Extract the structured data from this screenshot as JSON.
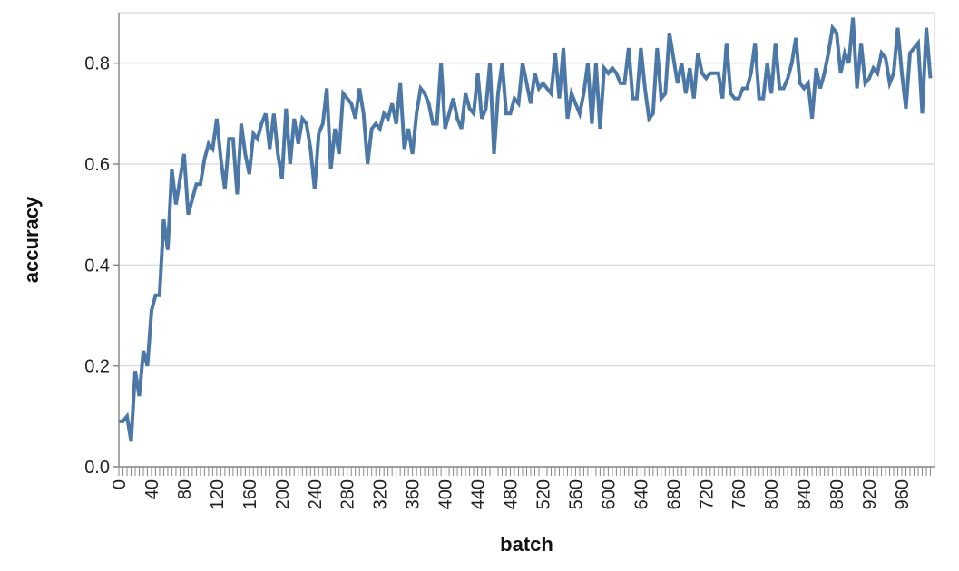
{
  "chart_data": {
    "type": "line",
    "title": "",
    "xlabel": "batch",
    "ylabel": "accuracy",
    "xlim": [
      0,
      1000
    ],
    "ylim": [
      0,
      0.9
    ],
    "x_ticks": [
      "0",
      "40",
      "80",
      "120",
      "160",
      "200",
      "240",
      "280",
      "320",
      "360",
      "400",
      "440",
      "480",
      "520",
      "560",
      "600",
      "640",
      "680",
      "720",
      "760",
      "800",
      "840",
      "880",
      "920",
      "960"
    ],
    "y_ticks": [
      "0.0",
      "0.2",
      "0.4",
      "0.6",
      "0.8"
    ],
    "grid": true,
    "line_color": "#4c78a8",
    "series": [
      {
        "x": [
          0,
          5,
          10,
          15,
          20,
          25,
          30,
          35,
          40,
          45,
          50,
          55,
          60,
          65,
          70,
          75,
          80,
          85,
          90,
          95,
          100,
          105,
          110,
          115,
          120,
          125,
          130,
          135,
          140,
          145,
          150,
          155,
          160,
          165,
          170,
          175,
          180,
          185,
          190,
          195,
          200,
          205,
          210,
          215,
          220,
          225,
          230,
          235,
          240,
          245,
          250,
          255,
          260,
          265,
          270,
          275,
          280,
          285,
          290,
          295,
          300,
          305,
          310,
          315,
          320,
          325,
          330,
          335,
          340,
          345,
          350,
          355,
          360,
          365,
          370,
          375,
          380,
          385,
          390,
          395,
          400,
          405,
          410,
          415,
          420,
          425,
          430,
          435,
          440,
          445,
          450,
          455,
          460,
          465,
          470,
          475,
          480,
          485,
          490,
          495,
          500,
          505,
          510,
          515,
          520,
          525,
          530,
          535,
          540,
          545,
          550,
          555,
          560,
          565,
          570,
          575,
          580,
          585,
          590,
          595,
          600,
          605,
          610,
          615,
          620,
          625,
          630,
          635,
          640,
          645,
          650,
          655,
          660,
          665,
          670,
          675,
          680,
          685,
          690,
          695,
          700,
          705,
          710,
          715,
          720,
          725,
          730,
          735,
          740,
          745,
          750,
          755,
          760,
          765,
          770,
          775,
          780,
          785,
          790,
          795,
          800,
          805,
          810,
          815,
          820,
          825,
          830,
          835,
          840,
          845,
          850,
          855,
          860,
          865,
          870,
          875,
          880,
          885,
          890,
          895,
          900,
          905,
          910,
          915,
          920,
          925,
          930,
          935,
          940,
          945,
          950,
          955,
          960,
          965,
          970,
          975,
          980,
          985,
          990,
          995
        ],
        "values": [
          0.09,
          0.09,
          0.1,
          0.05,
          0.19,
          0.14,
          0.23,
          0.2,
          0.31,
          0.34,
          0.34,
          0.49,
          0.43,
          0.59,
          0.52,
          0.57,
          0.62,
          0.5,
          0.53,
          0.56,
          0.56,
          0.61,
          0.64,
          0.63,
          0.69,
          0.61,
          0.55,
          0.65,
          0.65,
          0.54,
          0.68,
          0.62,
          0.58,
          0.66,
          0.65,
          0.68,
          0.7,
          0.63,
          0.7,
          0.62,
          0.57,
          0.71,
          0.6,
          0.69,
          0.64,
          0.69,
          0.68,
          0.63,
          0.55,
          0.66,
          0.68,
          0.75,
          0.59,
          0.67,
          0.62,
          0.74,
          0.73,
          0.72,
          0.69,
          0.75,
          0.7,
          0.6,
          0.67,
          0.68,
          0.67,
          0.7,
          0.69,
          0.72,
          0.68,
          0.76,
          0.63,
          0.67,
          0.62,
          0.7,
          0.75,
          0.74,
          0.72,
          0.68,
          0.68,
          0.8,
          0.67,
          0.7,
          0.73,
          0.69,
          0.67,
          0.74,
          0.71,
          0.7,
          0.78,
          0.69,
          0.71,
          0.8,
          0.62,
          0.74,
          0.8,
          0.7,
          0.7,
          0.73,
          0.72,
          0.8,
          0.76,
          0.72,
          0.78,
          0.75,
          0.76,
          0.75,
          0.74,
          0.82,
          0.73,
          0.83,
          0.69,
          0.74,
          0.72,
          0.7,
          0.74,
          0.8,
          0.68,
          0.8,
          0.67,
          0.79,
          0.78,
          0.79,
          0.78,
          0.76,
          0.76,
          0.83,
          0.73,
          0.73,
          0.83,
          0.75,
          0.69,
          0.7,
          0.83,
          0.73,
          0.74,
          0.86,
          0.81,
          0.76,
          0.8,
          0.74,
          0.79,
          0.73,
          0.82,
          0.78,
          0.77,
          0.78,
          0.78,
          0.78,
          0.73,
          0.84,
          0.74,
          0.73,
          0.73,
          0.75,
          0.75,
          0.78,
          0.84,
          0.73,
          0.73,
          0.8,
          0.74,
          0.84,
          0.75,
          0.75,
          0.77,
          0.8,
          0.85,
          0.76,
          0.75,
          0.76,
          0.69,
          0.79,
          0.75,
          0.78,
          0.82,
          0.87,
          0.86,
          0.78,
          0.82,
          0.8,
          0.89,
          0.75,
          0.84,
          0.76,
          0.77,
          0.79,
          0.78,
          0.82,
          0.81,
          0.76,
          0.78,
          0.87,
          0.78,
          0.71,
          0.82,
          0.83,
          0.84,
          0.7,
          0.87,
          0.77
        ]
      }
    ]
  }
}
